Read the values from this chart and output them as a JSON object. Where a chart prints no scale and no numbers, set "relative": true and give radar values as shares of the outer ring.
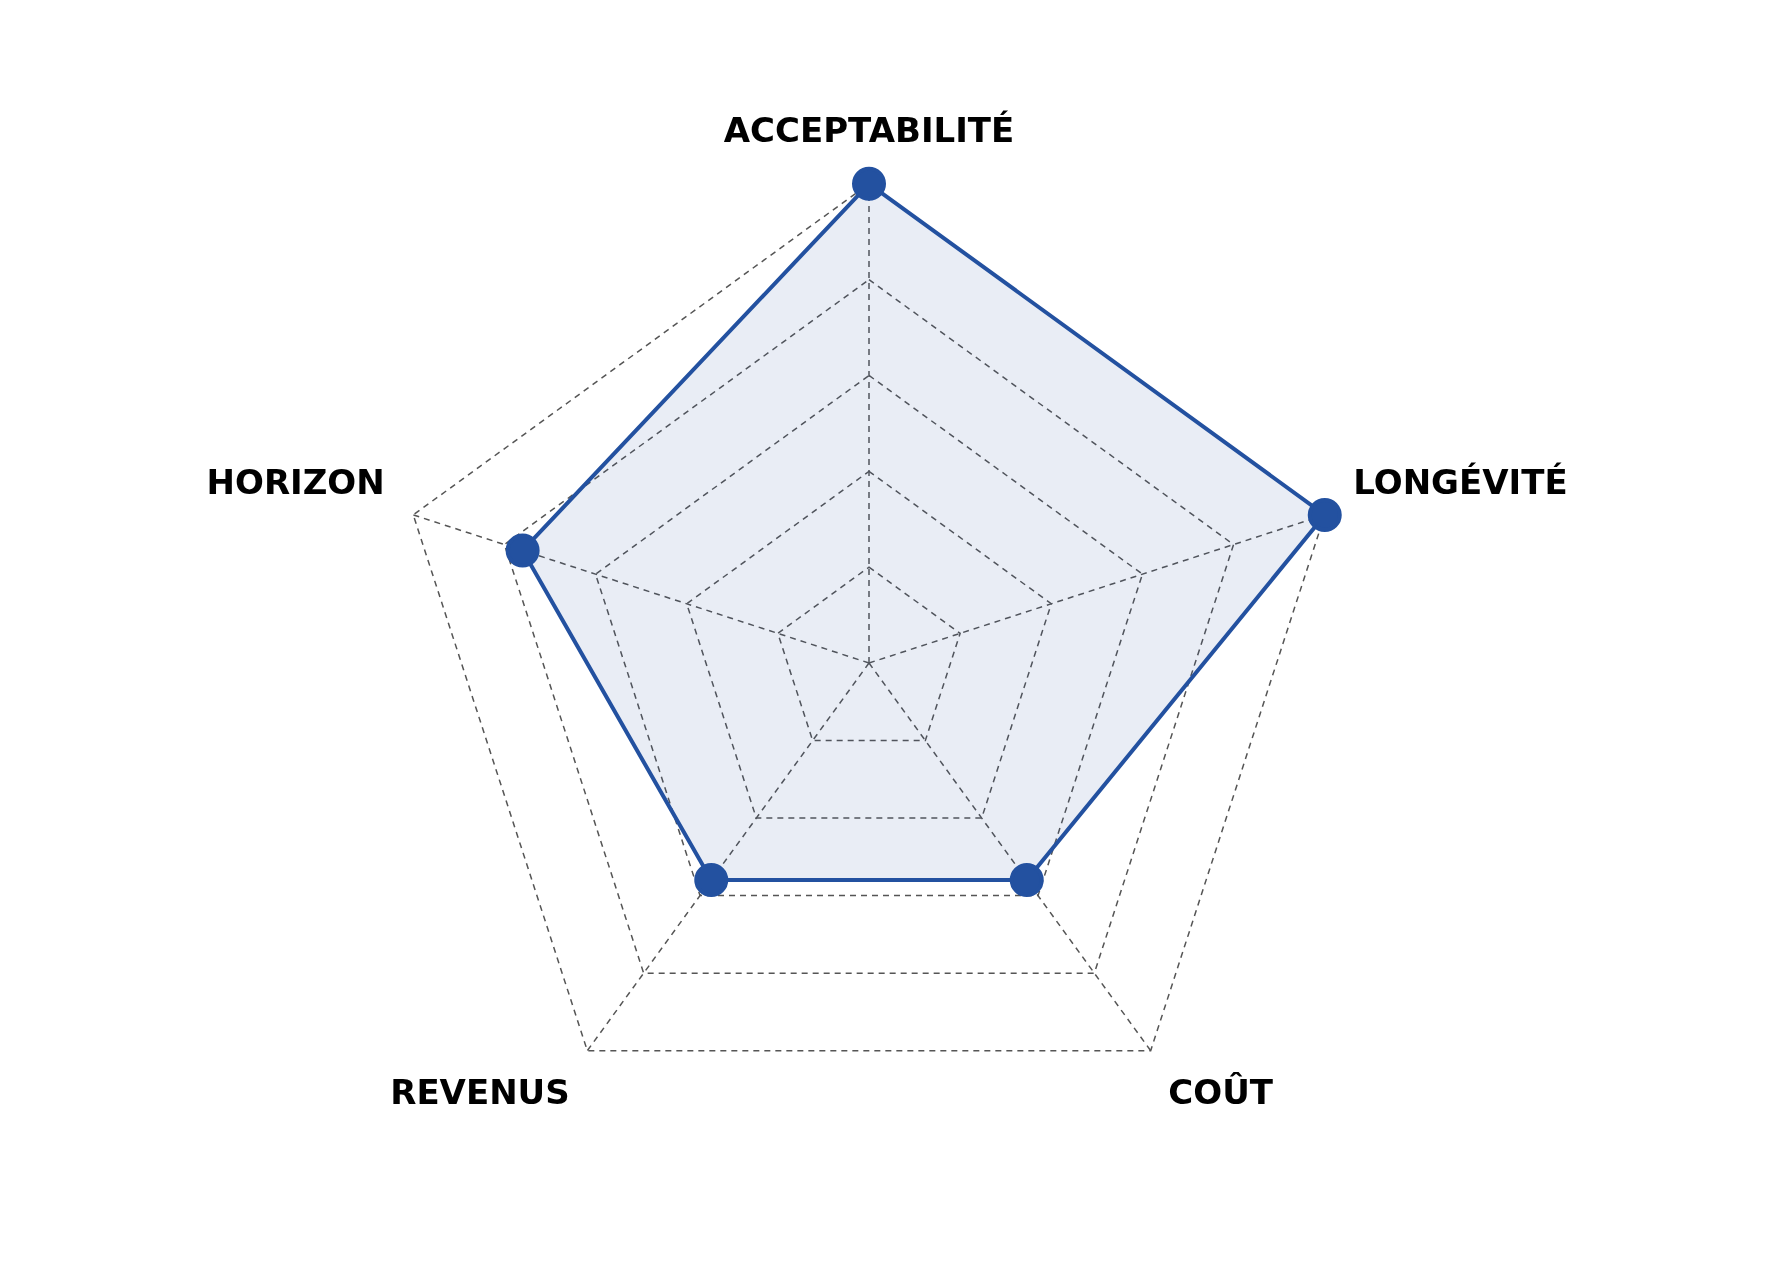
{
  "chart_data": {
    "type": "radar",
    "categories": [
      "ACCEPTABILITÉ",
      "LONGÉVITÉ",
      "COÛT",
      "REVENUS",
      "HORIZON"
    ],
    "relative": true,
    "grid": true,
    "marker": "circle",
    "series": [
      {
        "color": "#2351a0",
        "values": [
          1,
          1,
          0.56,
          0.56,
          0.76
        ]
      }
    ]
  }
}
